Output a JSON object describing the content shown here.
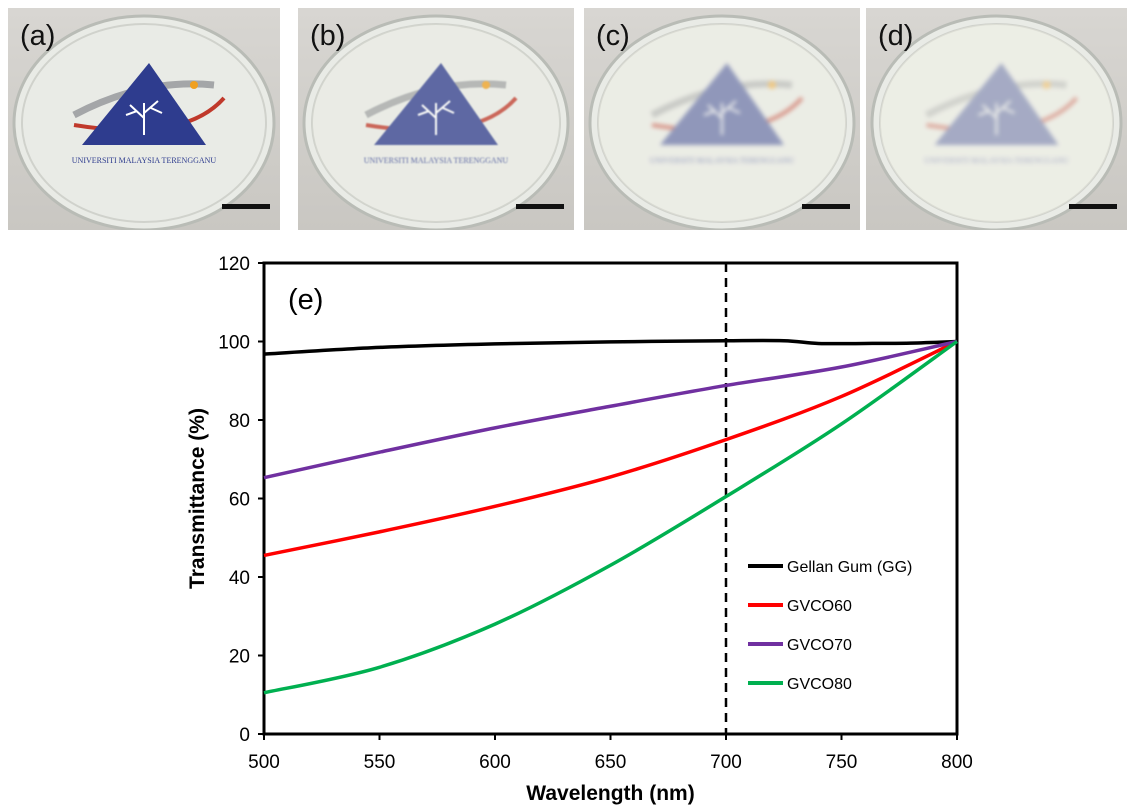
{
  "photos": [
    {
      "label": "(a)",
      "logo_caption": "UNIVERSITI MALAYSIA TERENGGANU"
    },
    {
      "label": "(b)",
      "logo_caption": "UNIVERSITI MALAYSIA TERENGGANU"
    },
    {
      "label": "(c)",
      "logo_caption": "UNIVERSITI MALAYSIA TERENGGANU"
    },
    {
      "label": "(d)",
      "logo_caption": "UNIVERSITI MALAYSIA TERENGGANU"
    }
  ],
  "chart_data": {
    "type": "line",
    "panel_label": "(e)",
    "xlabel": "Wavelength (nm)",
    "ylabel": "Transmittance (%)",
    "xlim": [
      500,
      800
    ],
    "ylim": [
      0,
      120
    ],
    "xticks": [
      500,
      550,
      600,
      650,
      700,
      750,
      800
    ],
    "yticks": [
      0,
      20,
      40,
      60,
      80,
      100,
      120
    ],
    "grid": false,
    "legend_position": "right",
    "reference_line_x": 700,
    "series": [
      {
        "name": "Gellan Gum (GG)",
        "color": "#000000",
        "x": [
          500,
          550,
          600,
          650,
          700,
          725,
          740,
          760,
          780,
          800
        ],
        "y": [
          96.8,
          98.5,
          99.4,
          99.9,
          100.2,
          100.2,
          99.5,
          99.5,
          99.6,
          100
        ]
      },
      {
        "name": "GVCO60",
        "color": "#ff0000",
        "x": [
          500,
          550,
          600,
          650,
          700,
          750,
          800
        ],
        "y": [
          45.5,
          51.5,
          58.0,
          65.5,
          75.0,
          86.0,
          100
        ]
      },
      {
        "name": "GVCO70",
        "color": "#7030a0",
        "x": [
          500,
          550,
          600,
          650,
          700,
          750,
          800
        ],
        "y": [
          65.3,
          71.8,
          78.0,
          83.5,
          88.8,
          93.5,
          100
        ]
      },
      {
        "name": "GVCO80",
        "color": "#00b050",
        "x": [
          500,
          550,
          600,
          650,
          700,
          750,
          800
        ],
        "y": [
          10.5,
          17.0,
          28.0,
          43.0,
          60.5,
          79.0,
          100
        ]
      }
    ]
  }
}
